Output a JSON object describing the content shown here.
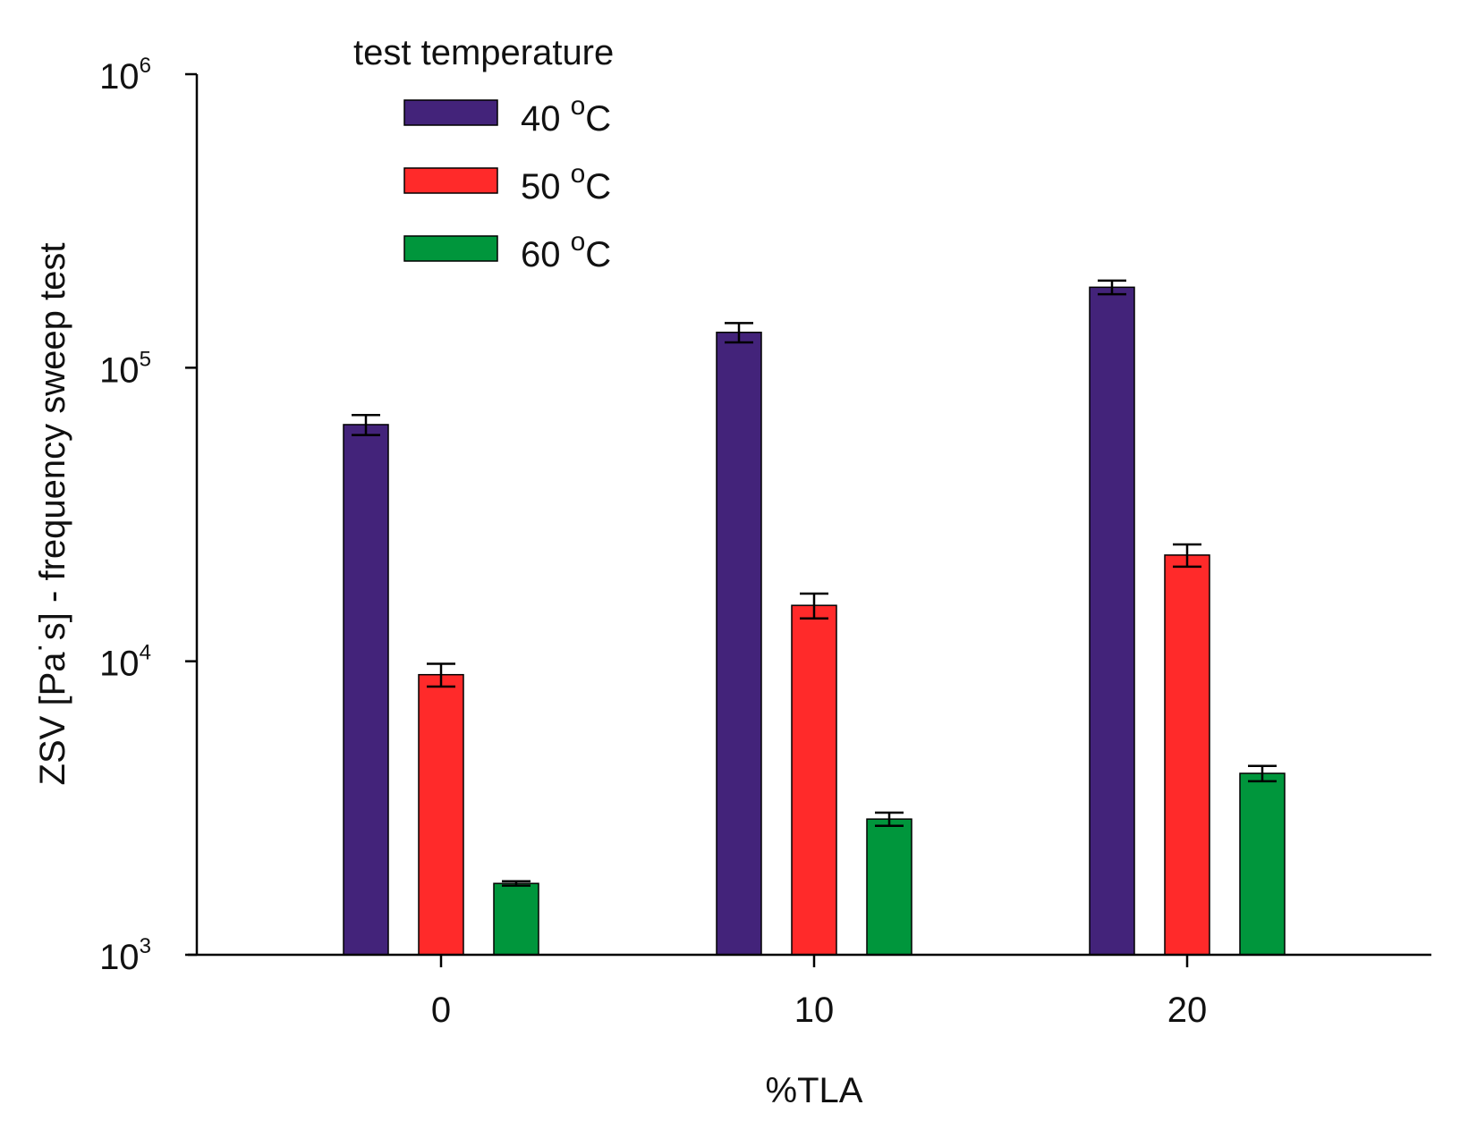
{
  "chart_data": {
    "type": "bar",
    "title": "",
    "xlabel": "%TLA",
    "ylabel": "ZSV [Pa˙s] - frequency sweep test",
    "yscale": "log",
    "ylim": [
      1000,
      1000000
    ],
    "y_ticks": [
      {
        "value": 1000,
        "base": "10",
        "exponent": "3"
      },
      {
        "value": 10000,
        "base": "10",
        "exponent": "4"
      },
      {
        "value": 100000,
        "base": "10",
        "exponent": "5"
      },
      {
        "value": 1000000,
        "base": "10",
        "exponent": "6"
      }
    ],
    "categories": [
      "0",
      "10",
      "20"
    ],
    "legend": {
      "title": "test temperature",
      "position": "top-left"
    },
    "series": [
      {
        "name": "40",
        "unit": "C",
        "unit_sup": "o",
        "color": "#43237a",
        "values": [
          64000,
          132000,
          188000
        ],
        "errors": [
          5000,
          10000,
          10000
        ]
      },
      {
        "name": "50",
        "unit": "C",
        "unit_sup": "o",
        "color": "#ff2a2a",
        "values": [
          9000,
          15500,
          23000
        ],
        "errors": [
          800,
          1500,
          2000
        ]
      },
      {
        "name": "60",
        "unit": "C",
        "unit_sup": "o",
        "color": "#00963c",
        "values": [
          1750,
          2900,
          4150
        ],
        "errors": [
          30,
          150,
          250
        ]
      }
    ]
  }
}
